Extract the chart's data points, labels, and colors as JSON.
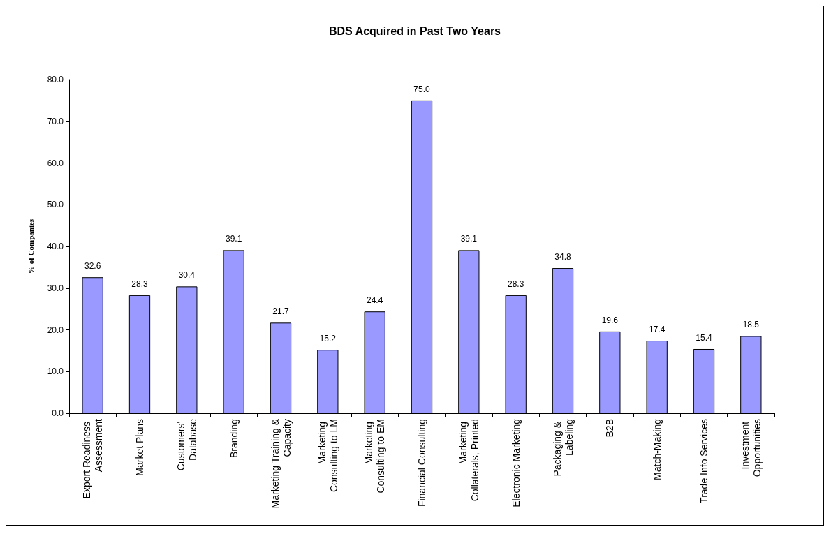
{
  "chart_data": {
    "type": "bar",
    "title": "BDS Acquired in Past Two Years",
    "ylabel": "% of Companies",
    "categories": [
      "Export Readiness Assessment",
      "Market Plans",
      "Customers' Database",
      "Branding",
      "Marketing Training & Capacity",
      "Marketing Consulting to LM",
      "Marketing Consulting to EM",
      "Financial Consulting",
      "Marketing Collaterals, Printed",
      "Electronic Marketing",
      "Packaging & Labeling",
      "B2B",
      "Match-Making",
      "Trade Info Services",
      "Investment Opportunities"
    ],
    "values": [
      32.6,
      28.3,
      30.4,
      39.1,
      21.7,
      15.2,
      24.4,
      75.0,
      39.1,
      28.3,
      34.8,
      19.6,
      17.4,
      15.4,
      18.5
    ],
    "value_labels": [
      "32.6",
      "28.3",
      "30.4",
      "39.1",
      "21.7",
      "15.2",
      "24.4",
      "75.0",
      "39.1",
      "28.3",
      "34.8",
      "19.6",
      "17.4",
      "15.4",
      "18.5"
    ],
    "color": "#9999ff",
    "ylim": [
      0,
      80
    ],
    "yticks": [
      {
        "value": 0,
        "label": "0.0"
      },
      {
        "value": 10,
        "label": "10.0"
      },
      {
        "value": 20,
        "label": "20.0"
      },
      {
        "value": 30,
        "label": "30.0"
      },
      {
        "value": 40,
        "label": "40.0"
      },
      {
        "value": 50,
        "label": "50.0"
      },
      {
        "value": 60,
        "label": "60.0"
      },
      {
        "value": 70,
        "label": "70.0"
      },
      {
        "value": 80,
        "label": "80.0"
      }
    ],
    "grid": false
  }
}
